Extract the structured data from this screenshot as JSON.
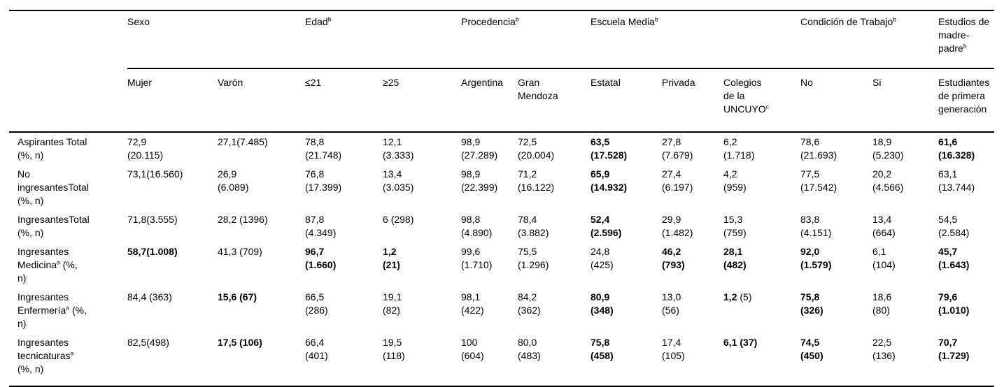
{
  "colors": {
    "background": "#ffffff",
    "text": "#000000",
    "rule": "#000000"
  },
  "table": {
    "groups": [
      {
        "name": "sexo",
        "span": 2,
        "lines": [
          "Sexo"
        ]
      },
      {
        "name": "edad",
        "span": 2,
        "lines": [
          [
            {
              "t": "Edad"
            },
            {
              "t": "b",
              "sup": true
            }
          ]
        ]
      },
      {
        "name": "procedencia",
        "span": 2,
        "lines": [
          [
            {
              "t": "Procedencia"
            },
            {
              "t": "b",
              "sup": true
            }
          ]
        ]
      },
      {
        "name": "escuela-media",
        "span": 3,
        "lines": [
          [
            {
              "t": "Escuela Media"
            },
            {
              "t": "b",
              "sup": true
            }
          ]
        ]
      },
      {
        "name": "condicion-de-trabajo",
        "span": 2,
        "lines": [
          [
            {
              "t": "Condición de Trabajo"
            },
            {
              "t": "b",
              "sup": true
            }
          ]
        ]
      },
      {
        "name": "estudios-madre-padre",
        "span": 1,
        "lines": [
          "Estudios de",
          "madre-",
          [
            {
              "t": "padre"
            },
            {
              "t": "b",
              "sup": true
            }
          ]
        ]
      }
    ],
    "columns": [
      {
        "name": "mujer",
        "lines": [
          "Mujer"
        ]
      },
      {
        "name": "varon",
        "lines": [
          "Varón"
        ]
      },
      {
        "name": "edad-le21",
        "lines": [
          "≤21"
        ]
      },
      {
        "name": "edad-ge25",
        "lines": [
          "≥25"
        ]
      },
      {
        "name": "argentina",
        "lines": [
          "Argentina"
        ]
      },
      {
        "name": "gran-mendoza",
        "lines": [
          "Gran",
          "Mendoza"
        ]
      },
      {
        "name": "estatal",
        "lines": [
          "Estatal"
        ]
      },
      {
        "name": "privada",
        "lines": [
          "Privada"
        ]
      },
      {
        "name": "colegios-uncuyo",
        "lines": [
          "Colegios",
          "de la",
          [
            {
              "t": "UNCUYO"
            },
            {
              "t": "c",
              "sup": true
            }
          ]
        ]
      },
      {
        "name": "trabajo-no",
        "lines": [
          "No"
        ]
      },
      {
        "name": "trabajo-si",
        "lines": [
          "Si"
        ]
      },
      {
        "name": "primera-generacion",
        "lines": [
          "Estudiantes",
          "de primera",
          "generación"
        ]
      }
    ],
    "rows": [
      {
        "name": "aspirantes-total",
        "label": {
          "lines": [
            "Aspirantes Total",
            "(%, n)"
          ]
        },
        "cells": [
          {
            "lines": [
              "72,9",
              "(20.115)"
            ]
          },
          {
            "lines": [
              "27,1(7.485)"
            ]
          },
          {
            "lines": [
              "78,8",
              "(21.748)"
            ]
          },
          {
            "lines": [
              "12,1",
              "(3.333)"
            ]
          },
          {
            "lines": [
              "98,9",
              "(27.289)"
            ]
          },
          {
            "lines": [
              "72,5",
              "(20.004)"
            ]
          },
          {
            "b": true,
            "lines": [
              "63,5",
              "(17.528)"
            ]
          },
          {
            "lines": [
              "27,8",
              "(7.679)"
            ]
          },
          {
            "lines": [
              "6,2",
              "(1.718)"
            ]
          },
          {
            "lines": [
              "78,6",
              "(21.693)"
            ]
          },
          {
            "lines": [
              "18,9",
              "(5.230)"
            ]
          },
          {
            "b": true,
            "lines": [
              "61,6",
              "(16.328)"
            ]
          }
        ]
      },
      {
        "name": "no-ingresantes-total",
        "label": {
          "lines": [
            "No",
            "ingresantesTotal",
            "(%, n)"
          ]
        },
        "cells": [
          {
            "lines": [
              "73,1(16.560)"
            ]
          },
          {
            "lines": [
              "26,9",
              "(6.089)"
            ]
          },
          {
            "lines": [
              "76,8",
              "(17.399)"
            ]
          },
          {
            "lines": [
              "13,4",
              "(3.035)"
            ]
          },
          {
            "lines": [
              "98,9",
              "(22.399)"
            ]
          },
          {
            "lines": [
              "71,2",
              "(16.122)"
            ]
          },
          {
            "b": true,
            "lines": [
              "65,9",
              "(14.932)"
            ]
          },
          {
            "lines": [
              "27,4",
              "(6.197)"
            ]
          },
          {
            "lines": [
              "4,2",
              "(959)"
            ]
          },
          {
            "lines": [
              "77,5",
              "(17.542)"
            ]
          },
          {
            "lines": [
              "20,2",
              "(4.566)"
            ]
          },
          {
            "lines": [
              "63,1",
              "(13.744)"
            ]
          }
        ]
      },
      {
        "name": "ingresantes-total",
        "label": {
          "lines": [
            "IngresantesTotal",
            "(%, n)"
          ]
        },
        "cells": [
          {
            "lines": [
              "71,8(3.555)"
            ]
          },
          {
            "lines": [
              "28,2 (1396)"
            ]
          },
          {
            "lines": [
              "87,8",
              "(4.349)"
            ]
          },
          {
            "lines": [
              "6 (298)"
            ]
          },
          {
            "lines": [
              "98,8",
              "(4.890)"
            ]
          },
          {
            "lines": [
              "78,4",
              "(3.882)"
            ]
          },
          {
            "b": true,
            "lines": [
              "52,4",
              "(2.596)"
            ]
          },
          {
            "lines": [
              "29,9",
              "(1.482)"
            ]
          },
          {
            "lines": [
              "15,3",
              "(759)"
            ]
          },
          {
            "lines": [
              "83,8",
              "(4.151)"
            ]
          },
          {
            "lines": [
              "13,4",
              "(664)"
            ]
          },
          {
            "lines": [
              "54,5",
              "(2.584)"
            ]
          }
        ]
      },
      {
        "name": "ingresantes-medicina",
        "label": {
          "lines": [
            "Ingresantes",
            [
              {
                "t": "Medicina"
              },
              {
                "t": "a",
                "sup": true
              },
              {
                "t": " (%,"
              }
            ],
            "n)"
          ]
        },
        "cells": [
          {
            "b": true,
            "lines": [
              "58,7(1.008)"
            ]
          },
          {
            "lines": [
              "41,3 (709)"
            ]
          },
          {
            "b": true,
            "lines": [
              "96,7",
              "(1.660)"
            ]
          },
          {
            "b": true,
            "lines": [
              "1,2",
              "(21)"
            ]
          },
          {
            "lines": [
              "99,6",
              "(1.710)"
            ]
          },
          {
            "lines": [
              "75,5",
              "(1.296)"
            ]
          },
          {
            "lines": [
              "24,8",
              "(425)"
            ]
          },
          {
            "b": true,
            "lines": [
              "46,2",
              "(793)"
            ]
          },
          {
            "b": true,
            "lines": [
              "28,1",
              "(482)"
            ]
          },
          {
            "b": true,
            "lines": [
              "92,0",
              "(1.579)"
            ]
          },
          {
            "lines": [
              "6,1",
              "(104)"
            ]
          },
          {
            "b": true,
            "lines": [
              "45,7",
              "(1.643)"
            ]
          }
        ]
      },
      {
        "name": "ingresantes-enfermeria",
        "label": {
          "lines": [
            "Ingresantes",
            [
              {
                "t": "Enfermería"
              },
              {
                "t": "a",
                "sup": true
              },
              {
                "t": " (%,"
              }
            ],
            "n)"
          ]
        },
        "cells": [
          {
            "lines": [
              "84,4 (363)"
            ]
          },
          {
            "b": true,
            "lines": [
              "15,6 (67)"
            ]
          },
          {
            "lines": [
              "66,5",
              "(286)"
            ]
          },
          {
            "lines": [
              "19,1",
              "(82)"
            ]
          },
          {
            "lines": [
              "98,1",
              "(422)"
            ]
          },
          {
            "lines": [
              "84,2",
              "(362)"
            ]
          },
          {
            "b": true,
            "lines": [
              "80,9",
              "(348)"
            ]
          },
          {
            "lines": [
              "13,0",
              "(56)"
            ]
          },
          {
            "lines": [
              [
                {
                  "t": "1,2 ",
                  "b": true
                },
                {
                  "t": "(5)"
                }
              ]
            ]
          },
          {
            "b": true,
            "lines": [
              "75,8",
              "(326)"
            ]
          },
          {
            "lines": [
              "18,6",
              "(80)"
            ]
          },
          {
            "b": true,
            "lines": [
              "79,6",
              "(1.010)"
            ]
          }
        ]
      },
      {
        "name": "ingresantes-tecnicaturas",
        "label": {
          "lines": [
            "Ingresantes",
            [
              {
                "t": "tecnicaturas"
              },
              {
                "t": "a",
                "sup": true
              }
            ],
            "(%, n)"
          ]
        },
        "cells": [
          {
            "lines": [
              "82,5(498)"
            ]
          },
          {
            "b": true,
            "lines": [
              "17,5 (106)"
            ]
          },
          {
            "lines": [
              "66,4",
              "(401)"
            ]
          },
          {
            "lines": [
              "19,5",
              "(118)"
            ]
          },
          {
            "lines": [
              "100",
              "(604)"
            ]
          },
          {
            "lines": [
              "80,0",
              "(483)"
            ]
          },
          {
            "b": true,
            "lines": [
              "75,8",
              "(458)"
            ]
          },
          {
            "lines": [
              "17,4",
              "(105)"
            ]
          },
          {
            "b": true,
            "lines": [
              "6,1 (37)"
            ]
          },
          {
            "b": true,
            "lines": [
              "74,5",
              "(450)"
            ]
          },
          {
            "lines": [
              "22,5",
              "(136)"
            ]
          },
          {
            "b": true,
            "lines": [
              "70,7",
              "(1.729)"
            ]
          }
        ]
      }
    ]
  }
}
